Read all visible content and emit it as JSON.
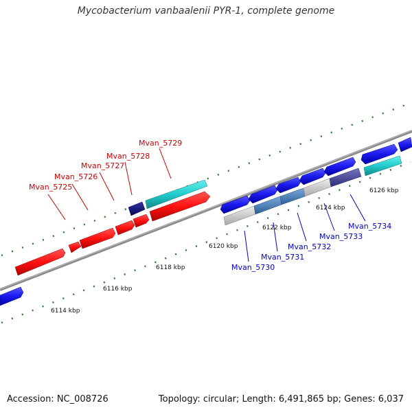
{
  "title": "Mycobacterium vanbaalenii PYR-1, complete genome",
  "footer": {
    "accession": "Accession: NC_008726",
    "summary": "Topology: circular; Length: 6,491,865 bp; Genes: 6,037"
  },
  "kbp_labels": [
    "6114 kbp",
    "6116 kbp",
    "6118 kbp",
    "6120 kbp",
    "6122 kbp",
    "6124 kbp",
    "6126 kbp"
  ],
  "genes_top": [
    "Mvan_5725",
    "Mvan_5726",
    "Mvan_5727",
    "Mvan_5728",
    "Mvan_5729"
  ],
  "genes_bottom": [
    "Mvan_5730",
    "Mvan_5731",
    "Mvan_5732",
    "Mvan_5733",
    "Mvan_5734"
  ],
  "colors": {
    "top_label": "#cc0000",
    "bottom_label": "#0000cc",
    "backbone": "#888888",
    "tick": "#2e7d32",
    "red": "#ff1a1a",
    "cyan": "#22cccc",
    "blue": "#1a1aee",
    "navy": "#0d0d7a",
    "steel": "#4a7fb8",
    "slate": "#4a4a9a",
    "grey": "#c8c8c8"
  }
}
